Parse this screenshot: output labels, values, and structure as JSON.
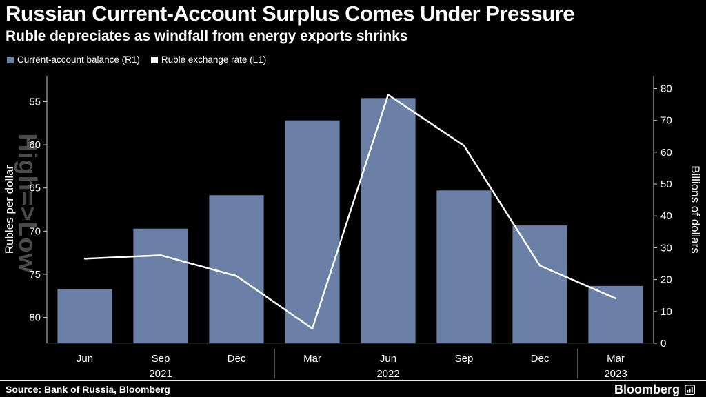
{
  "header": {
    "title": "Russian Current-Account Surplus Comes Under Pressure",
    "subtitle": "Ruble depreciates as windfall from energy exports shrinks"
  },
  "legend": [
    {
      "label": "Current-account balance (R1)",
      "color": "#6b80a6"
    },
    {
      "label": "Ruble exchange rate (L1)",
      "color": "#ffffff"
    }
  ],
  "chart_data": {
    "type": "bar+line",
    "categories": [
      "Jun",
      "Sep",
      "Dec",
      "Mar",
      "Jun",
      "Sep",
      "Dec",
      "Mar"
    ],
    "year_labels": [
      {
        "index": 1,
        "label": "2021"
      },
      {
        "index": 4,
        "label": "2022"
      },
      {
        "index": 7,
        "label": "2023"
      }
    ],
    "year_dividers": [
      3,
      7
    ],
    "series": [
      {
        "name": "Current-account balance (R1)",
        "type": "bar",
        "axis": "R1",
        "unit": "billions of dollars",
        "values": [
          17,
          36,
          46.5,
          70,
          77,
          48,
          37,
          18
        ]
      },
      {
        "name": "Ruble exchange rate (L1)",
        "type": "line",
        "axis": "L1",
        "unit": "rubles per dollar",
        "values": [
          73.2,
          72.8,
          75.2,
          81.3,
          54.2,
          60.1,
          74,
          77.8
        ]
      }
    ],
    "left_axis": {
      "title": "Rubles per dollar",
      "note": "High=>Low",
      "inverted": true,
      "ticks": [
        55,
        60,
        65,
        70,
        75,
        80
      ],
      "range": [
        52,
        83
      ]
    },
    "right_axis": {
      "title": "Billions of dollars",
      "ticks": [
        80,
        70,
        60,
        50,
        40,
        30,
        20,
        10,
        0
      ],
      "range": [
        0,
        84
      ]
    },
    "grid": false,
    "legend_position": "top-left"
  },
  "footer": {
    "source": "Source: Bank of Russia, Bloomberg",
    "brand": "Bloomberg"
  },
  "colors": {
    "background": "#000000",
    "text": "#ffffff",
    "bar": "#6b80a6",
    "line": "#ffffff",
    "axis": "#cfcfcf",
    "watermark": "#4a4a4a"
  }
}
